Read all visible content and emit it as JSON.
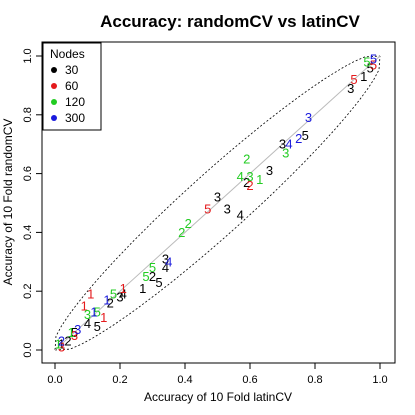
{
  "chart_data": {
    "type": "scatter",
    "title": "Accuracy: randomCV vs latinCV",
    "xlabel": "Accuracy of 10 Fold latinCV",
    "ylabel": "Accuracy of 10 Fold randomCV",
    "xlim": [
      0,
      1
    ],
    "ylim": [
      0,
      1
    ],
    "xticks": [
      "0.0",
      "0.2",
      "0.4",
      "0.6",
      "0.8",
      "1.0"
    ],
    "yticks": [
      "0.0",
      "0.2",
      "0.4",
      "0.6",
      "0.8",
      "1.0"
    ],
    "grid": false,
    "reference_line": "y = x",
    "envelope": "dotted",
    "legend": {
      "title": "Nodes",
      "position": "top-left",
      "entries": [
        {
          "label": "30",
          "color": "#000000"
        },
        {
          "label": "60",
          "color": "#e41a1c"
        },
        {
          "label": "120",
          "color": "#22cc22"
        },
        {
          "label": "300",
          "color": "#1a1add"
        }
      ]
    },
    "point_label_note": "points drawn as digits",
    "series": [
      {
        "name": "30",
        "color": "#000000",
        "points": [
          {
            "x": 0.02,
            "y": 0.02,
            "label": "1"
          },
          {
            "x": 0.04,
            "y": 0.03,
            "label": "2"
          },
          {
            "x": 0.06,
            "y": 0.06,
            "label": "5"
          },
          {
            "x": 0.1,
            "y": 0.09,
            "label": "4"
          },
          {
            "x": 0.13,
            "y": 0.08,
            "label": "5"
          },
          {
            "x": 0.17,
            "y": 0.16,
            "label": "2"
          },
          {
            "x": 0.2,
            "y": 0.18,
            "label": "3"
          },
          {
            "x": 0.21,
            "y": 0.19,
            "label": "4"
          },
          {
            "x": 0.27,
            "y": 0.21,
            "label": "1"
          },
          {
            "x": 0.3,
            "y": 0.25,
            "label": "2"
          },
          {
            "x": 0.34,
            "y": 0.28,
            "label": "4"
          },
          {
            "x": 0.34,
            "y": 0.31,
            "label": "3"
          },
          {
            "x": 0.32,
            "y": 0.23,
            "label": "5"
          },
          {
            "x": 0.5,
            "y": 0.52,
            "label": "3"
          },
          {
            "x": 0.53,
            "y": 0.48,
            "label": "3"
          },
          {
            "x": 0.57,
            "y": 0.46,
            "label": "4"
          },
          {
            "x": 0.59,
            "y": 0.57,
            "label": "2"
          },
          {
            "x": 0.66,
            "y": 0.61,
            "label": "3"
          },
          {
            "x": 0.7,
            "y": 0.7,
            "label": "3"
          },
          {
            "x": 0.77,
            "y": 0.73,
            "label": "5"
          },
          {
            "x": 0.91,
            "y": 0.89,
            "label": "3"
          },
          {
            "x": 0.95,
            "y": 0.93,
            "label": "1"
          },
          {
            "x": 0.97,
            "y": 0.96,
            "label": "5"
          }
        ]
      },
      {
        "name": "60",
        "color": "#e41a1c",
        "points": [
          {
            "x": 0.02,
            "y": 0.01,
            "label": "3"
          },
          {
            "x": 0.06,
            "y": 0.05,
            "label": "3"
          },
          {
            "x": 0.09,
            "y": 0.15,
            "label": "1"
          },
          {
            "x": 0.11,
            "y": 0.19,
            "label": "1"
          },
          {
            "x": 0.15,
            "y": 0.11,
            "label": "1"
          },
          {
            "x": 0.21,
            "y": 0.21,
            "label": "1"
          },
          {
            "x": 0.47,
            "y": 0.48,
            "label": "5"
          },
          {
            "x": 0.6,
            "y": 0.56,
            "label": "2"
          },
          {
            "x": 0.92,
            "y": 0.92,
            "label": "5"
          },
          {
            "x": 0.98,
            "y": 0.97,
            "label": "5"
          }
        ]
      },
      {
        "name": "120",
        "color": "#22cc22",
        "points": [
          {
            "x": 0.01,
            "y": 0.02,
            "label": "1"
          },
          {
            "x": 0.05,
            "y": 0.06,
            "label": "1"
          },
          {
            "x": 0.1,
            "y": 0.12,
            "label": "3"
          },
          {
            "x": 0.13,
            "y": 0.13,
            "label": "5"
          },
          {
            "x": 0.18,
            "y": 0.19,
            "label": "5"
          },
          {
            "x": 0.28,
            "y": 0.25,
            "label": "5"
          },
          {
            "x": 0.3,
            "y": 0.28,
            "label": "5"
          },
          {
            "x": 0.39,
            "y": 0.4,
            "label": "2"
          },
          {
            "x": 0.41,
            "y": 0.43,
            "label": "2"
          },
          {
            "x": 0.57,
            "y": 0.59,
            "label": "4"
          },
          {
            "x": 0.6,
            "y": 0.59,
            "label": "3"
          },
          {
            "x": 0.59,
            "y": 0.65,
            "label": "2"
          },
          {
            "x": 0.63,
            "y": 0.58,
            "label": "1"
          },
          {
            "x": 0.71,
            "y": 0.67,
            "label": "3"
          },
          {
            "x": 0.96,
            "y": 0.98,
            "label": "5"
          }
        ]
      },
      {
        "name": "300",
        "color": "#1a1add",
        "points": [
          {
            "x": 0.02,
            "y": 0.03,
            "label": "2"
          },
          {
            "x": 0.07,
            "y": 0.07,
            "label": "3"
          },
          {
            "x": 0.12,
            "y": 0.13,
            "label": "1"
          },
          {
            "x": 0.16,
            "y": 0.17,
            "label": "1"
          },
          {
            "x": 0.35,
            "y": 0.3,
            "label": "4"
          },
          {
            "x": 0.72,
            "y": 0.7,
            "label": "4"
          },
          {
            "x": 0.75,
            "y": 0.72,
            "label": "2"
          },
          {
            "x": 0.78,
            "y": 0.79,
            "label": "3"
          },
          {
            "x": 0.98,
            "y": 0.99,
            "label": "5"
          }
        ]
      }
    ]
  }
}
